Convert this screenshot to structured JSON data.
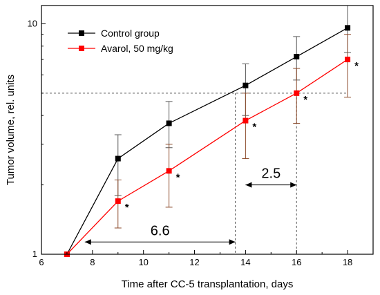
{
  "chart_data": {
    "type": "line",
    "xlabel": "Time after CC-5 transplantation, days",
    "ylabel": "Tumor volume, rel. units",
    "xlim": [
      6,
      19
    ],
    "ylim": [
      1,
      12
    ],
    "yscale": "log",
    "x_ticks": [
      6,
      8,
      10,
      12,
      14,
      16,
      18
    ],
    "x_tick_labels": [
      "6",
      "8",
      "10",
      "12",
      "14",
      "16",
      "18"
    ],
    "y_ticks": [
      1,
      10
    ],
    "y_tick_labels": [
      "1",
      "10"
    ],
    "grid": false,
    "legend_position": "top-left",
    "series": [
      {
        "name": "Control group",
        "color": "#000000",
        "marker": "square",
        "x": [
          7,
          9,
          11,
          14,
          16,
          18
        ],
        "y": [
          1.0,
          2.6,
          3.7,
          5.4,
          7.2,
          9.6
        ],
        "err_low": [
          1.0,
          1.8,
          2.9,
          4.0,
          5.7,
          7.5
        ],
        "err_high": [
          1.0,
          3.3,
          4.6,
          6.7,
          8.8,
          12.0
        ]
      },
      {
        "name": "Avarol, 50 mg/kg",
        "color": "#ff0000",
        "marker": "square",
        "x": [
          7,
          9,
          11,
          14,
          16,
          18
        ],
        "y": [
          1.0,
          1.7,
          2.3,
          3.8,
          5.0,
          7.0
        ],
        "err_low": [
          1.0,
          1.3,
          1.6,
          2.6,
          3.7,
          4.8
        ],
        "err_high": [
          1.0,
          2.1,
          3.0,
          5.0,
          6.4,
          9.0
        ]
      }
    ],
    "significance_marks": [
      {
        "label": "*",
        "x": 9,
        "y": 1.7
      },
      {
        "label": "*",
        "x": 11,
        "y": 2.3
      },
      {
        "label": "*",
        "x": 14,
        "y": 3.8
      },
      {
        "label": "*",
        "x": 16,
        "y": 5.0
      },
      {
        "label": "*",
        "x": 18,
        "y": 7.0
      }
    ],
    "reference_line": {
      "y": 5.0,
      "x_end": 18
    },
    "vertical_lines": [
      13.6,
      16
    ],
    "annotations": [
      {
        "label": "6.6",
        "from_x": 7.7,
        "to_x": 13.6,
        "y": 1.13
      },
      {
        "label": "2.5",
        "from_x": 14,
        "to_x": 16,
        "y": 2.0
      }
    ],
    "colors": {
      "control": "#000000",
      "treatment": "#ff0000",
      "error_bar": "#8b4a2a",
      "dashed": "#555555"
    }
  }
}
